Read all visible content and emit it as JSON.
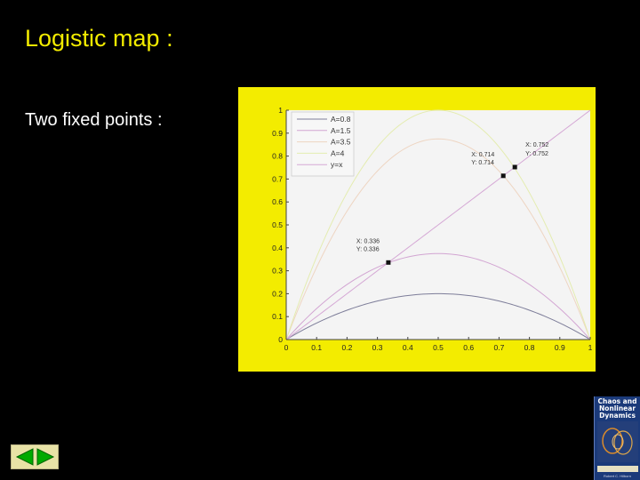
{
  "slide": {
    "title": "Logistic map :",
    "body_text": "Two fixed points :"
  },
  "colors": {
    "background": "#000000",
    "title": "#f3ec00",
    "frame": "#f3ec00",
    "plot_area": "#f4f4f4"
  },
  "chart_data": {
    "type": "line",
    "title": "",
    "xlabel": "",
    "ylabel": "",
    "xlim": [
      0,
      1
    ],
    "ylim": [
      0,
      1
    ],
    "x_ticks": [
      "0",
      "0.1",
      "0.2",
      "0.3",
      "0.4",
      "0.5",
      "0.6",
      "0.7",
      "0.8",
      "0.9",
      "1"
    ],
    "y_ticks": [
      "0",
      "0.1",
      "0.2",
      "0.3",
      "0.4",
      "0.5",
      "0.6",
      "0.7",
      "0.8",
      "0.9",
      "1"
    ],
    "grid": false,
    "legend_position": "top-left",
    "series": [
      {
        "name": "A=0.8",
        "function": "A*x*(1-x)",
        "A": 0.8,
        "color": "#7d7d99"
      },
      {
        "name": "A=1.5",
        "function": "A*x*(1-x)",
        "A": 1.5,
        "color": "#d2a5d2"
      },
      {
        "name": "A=3.5",
        "function": "A*x*(1-x)",
        "A": 3.5,
        "color": "#eed5c2"
      },
      {
        "name": "A=4",
        "function": "A*x*(1-x)",
        "A": 4,
        "color": "#e4ecb0"
      },
      {
        "name": "y=x",
        "function": "x",
        "color": "#d5a8d5"
      }
    ],
    "datatips": [
      {
        "x": 0.336,
        "y": 0.336,
        "lines": [
          "X: 0.336",
          "Y: 0.336"
        ]
      },
      {
        "x": 0.714,
        "y": 0.714,
        "lines": [
          "X: 0.714",
          "Y: 0.714"
        ]
      },
      {
        "x": 0.752,
        "y": 0.752,
        "lines": [
          "X: 0.752",
          "Y: 0.752"
        ]
      }
    ]
  },
  "nav": {
    "prev_icon": "left-arrow-icon",
    "next_icon": "right-arrow-icon",
    "color": "#00aa00"
  },
  "book": {
    "title": "Chaos and\nNonlinear\nDynamics",
    "author": "Robert C. Hilborn"
  }
}
